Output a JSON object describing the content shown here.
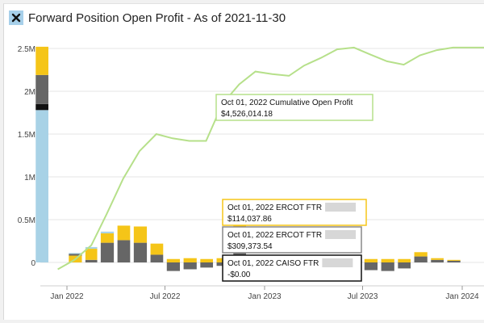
{
  "title": "Forward Position Open Profit - As of 2021-11-30",
  "close_icon": "close-icon",
  "colors": {
    "realized_blue": "#a8d2e6",
    "black": "#111111",
    "gray": "#666666",
    "yellow": "#f5c518",
    "line": "#b6e08a",
    "grid": "#e4e4e4",
    "redacted": "#d7d7d7",
    "tip_green": "#b6e08a",
    "tip_yellow": "#f5c518",
    "tip_gray": "#888888",
    "tip_black": "#111111"
  },
  "chart_data": {
    "type": "bar",
    "y_ticks": [
      {
        "value": 0,
        "label": "0"
      },
      {
        "value": 500000,
        "label": "0.5M"
      },
      {
        "value": 1000000,
        "label": "1M"
      },
      {
        "value": 1500000,
        "label": "1.5M"
      },
      {
        "value": 2000000,
        "label": "2M"
      },
      {
        "value": 2500000,
        "label": "2.5M"
      }
    ],
    "ylim": [
      -150000,
      2660000
    ],
    "x_ticks": [
      {
        "date": "2022-01-01",
        "label": "Jan 2022"
      },
      {
        "date": "2022-07-01",
        "label": "Jul 2022"
      },
      {
        "date": "2023-01-01",
        "label": "Jan 2023"
      },
      {
        "date": "2023-07-01",
        "label": "Jul 2023"
      },
      {
        "date": "2024-01-01",
        "label": "Jan 2024"
      }
    ],
    "months": [
      "2021-11",
      "2021-12",
      "2022-01",
      "2022-02",
      "2022-03",
      "2022-04",
      "2022-05",
      "2022-06",
      "2022-07",
      "2022-08",
      "2022-09",
      "2022-10",
      "2022-11",
      "2022-12",
      "2023-01",
      "2023-02",
      "2023-03",
      "2023-04",
      "2023-05",
      "2023-06",
      "2023-07",
      "2023-08",
      "2023-09",
      "2023-10",
      "2023-11",
      "2023-12",
      "2024-01",
      "2024-02"
    ],
    "stacks": [
      [
        {
          "c": "realized_blue",
          "v": 1780000
        },
        {
          "c": "black",
          "v": 70000
        },
        {
          "c": "gray",
          "v": 340000
        },
        {
          "c": "yellow",
          "v": 330000
        }
      ],
      [
        {
          "c": "gray",
          "v": 0
        },
        {
          "c": "yellow",
          "v": 0
        }
      ],
      [
        {
          "c": "yellow",
          "v": 80000
        },
        {
          "c": "gray",
          "v": 20000
        },
        {
          "c": "realized_blue",
          "v": 10000
        }
      ],
      [
        {
          "c": "gray",
          "v": 30000
        },
        {
          "c": "yellow",
          "v": 130000
        },
        {
          "c": "realized_blue",
          "v": 20000
        }
      ],
      [
        {
          "c": "gray",
          "v": 230000
        },
        {
          "c": "yellow",
          "v": 110000
        },
        {
          "c": "realized_blue",
          "v": 20000
        }
      ],
      [
        {
          "c": "gray",
          "v": 260000
        },
        {
          "c": "yellow",
          "v": 170000
        }
      ],
      [
        {
          "c": "gray",
          "v": 230000
        },
        {
          "c": "yellow",
          "v": 190000
        }
      ],
      [
        {
          "c": "gray",
          "v": 90000
        },
        {
          "c": "yellow",
          "v": 130000
        }
      ],
      [
        {
          "c": "yellow",
          "v": 40000
        },
        {
          "c": "gray",
          "v": -100000
        }
      ],
      [
        {
          "c": "yellow",
          "v": 50000
        },
        {
          "c": "gray",
          "v": -80000
        }
      ],
      [
        {
          "c": "yellow",
          "v": 40000
        },
        {
          "c": "gray",
          "v": -60000
        }
      ],
      [
        {
          "c": "yellow",
          "v": 50000
        },
        {
          "c": "gray",
          "v": -40000
        }
      ],
      [
        {
          "c": "gray",
          "v": 320000
        },
        {
          "c": "yellow",
          "v": 110000
        }
      ],
      [
        {
          "c": "gray",
          "v": 0
        }
      ],
      [
        {
          "c": "gray",
          "v": 0
        }
      ],
      [
        {
          "c": "gray",
          "v": 0
        }
      ],
      [
        {
          "c": "gray",
          "v": 0
        }
      ],
      [
        {
          "c": "gray",
          "v": 0
        }
      ],
      [
        {
          "c": "gray",
          "v": 0
        }
      ],
      [
        {
          "c": "gray",
          "v": 0
        }
      ],
      [
        {
          "c": "yellow",
          "v": 40000
        },
        {
          "c": "gray",
          "v": -90000
        }
      ],
      [
        {
          "c": "yellow",
          "v": 40000
        },
        {
          "c": "gray",
          "v": -100000
        }
      ],
      [
        {
          "c": "yellow",
          "v": 40000
        },
        {
          "c": "gray",
          "v": -70000
        }
      ],
      [
        {
          "c": "gray",
          "v": 70000
        },
        {
          "c": "yellow",
          "v": 50000
        }
      ],
      [
        {
          "c": "gray",
          "v": 30000
        },
        {
          "c": "yellow",
          "v": 20000
        }
      ],
      [
        {
          "c": "gray",
          "v": 20000
        },
        {
          "c": "yellow",
          "v": 10000
        }
      ],
      [
        {
          "c": "gray",
          "v": 0
        }
      ],
      [
        {
          "c": "gray",
          "v": 0
        }
      ]
    ],
    "cumulative": [
      {
        "date": "2021-12-15",
        "y": -80000
      },
      {
        "date": "2022-01-15",
        "y": 30000
      },
      {
        "date": "2022-02-15",
        "y": 200000
      },
      {
        "date": "2022-03-15",
        "y": 560000
      },
      {
        "date": "2022-04-15",
        "y": 980000
      },
      {
        "date": "2022-05-15",
        "y": 1300000
      },
      {
        "date": "2022-06-15",
        "y": 1500000
      },
      {
        "date": "2022-07-15",
        "y": 1450000
      },
      {
        "date": "2022-08-15",
        "y": 1420000
      },
      {
        "date": "2022-09-15",
        "y": 1420000
      },
      {
        "date": "2022-10-15",
        "y": 1850000
      },
      {
        "date": "2022-11-15",
        "y": 2080000
      },
      {
        "date": "2022-12-15",
        "y": 2230000
      },
      {
        "date": "2023-01-15",
        "y": 2200000
      },
      {
        "date": "2023-02-15",
        "y": 2180000
      },
      {
        "date": "2023-03-15",
        "y": 2300000
      },
      {
        "date": "2023-04-15",
        "y": 2390000
      },
      {
        "date": "2023-05-15",
        "y": 2490000
      },
      {
        "date": "2023-06-15",
        "y": 2510000
      },
      {
        "date": "2023-07-15",
        "y": 2430000
      },
      {
        "date": "2023-08-15",
        "y": 2350000
      },
      {
        "date": "2023-09-15",
        "y": 2310000
      },
      {
        "date": "2023-10-15",
        "y": 2420000
      },
      {
        "date": "2023-11-15",
        "y": 2480000
      },
      {
        "date": "2023-12-15",
        "y": 2510000
      },
      {
        "date": "2024-01-15",
        "y": 2510000
      },
      {
        "date": "2024-02-15",
        "y": 2510000
      }
    ],
    "tooltips": [
      {
        "name": "tooltip-cumulative",
        "border": "tip_green",
        "line1": "Oct 01, 2022 Cumulative Open Profit",
        "line2": "$4,526,014.18",
        "redacted": false
      },
      {
        "name": "tooltip-ercot-yellow",
        "border": "tip_yellow",
        "line1": "Oct 01, 2022 ERCOT FTR",
        "line2": "$114,037.86",
        "redacted": true
      },
      {
        "name": "tooltip-ercot-gray",
        "border": "tip_gray",
        "line1": "Oct 01, 2022 ERCOT FTR",
        "line2": "$309,373.54",
        "redacted": true
      },
      {
        "name": "tooltip-caiso",
        "border": "tip_black",
        "line1": "Oct 01, 2022 CAISO FTR",
        "line2": "-$0.00",
        "redacted": true
      }
    ]
  }
}
